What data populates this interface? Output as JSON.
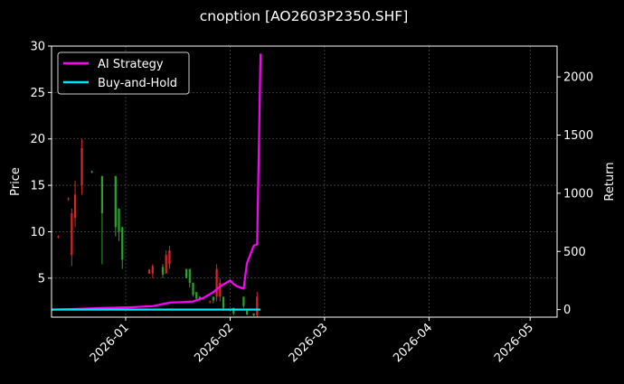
{
  "chart_data": {
    "type": "line",
    "title": "cnoption [AO2603P2350.SHF]",
    "ylabel": "Price",
    "y2label": "Return",
    "ylim": [
      0.8,
      30
    ],
    "y2lim": [
      -65,
      2265
    ],
    "xlim": [
      "2025-12-10",
      "2026-05-09"
    ],
    "yticks": [
      5,
      10,
      15,
      20,
      25,
      30
    ],
    "y2ticks": [
      0,
      500,
      1000,
      1500,
      2000
    ],
    "xticks": [
      "2026-01",
      "2026-02",
      "2026-03",
      "2026-04",
      "2026-05"
    ],
    "grid": true,
    "legend": "top-left",
    "colors": {
      "background": "#000000",
      "up": "#d62728",
      "down": "#2ca02c",
      "ai": "#ff00ff",
      "bh": "#00e5ff"
    },
    "candles": [
      {
        "date": "2025-12-12",
        "open": 9.4,
        "high": 9.6,
        "low": 9.3,
        "close": 9.5
      },
      {
        "date": "2025-12-15",
        "open": 13.5,
        "high": 13.7,
        "low": 13.3,
        "close": 13.6
      },
      {
        "date": "2025-12-16",
        "open": 7.5,
        "high": 12.5,
        "low": 6.3,
        "close": 12.0
      },
      {
        "date": "2025-12-17",
        "open": 11.5,
        "high": 15.5,
        "low": 10.5,
        "close": 14.0
      },
      {
        "date": "2025-12-19",
        "open": 15.0,
        "high": 20.0,
        "low": 14.0,
        "close": 19.0
      },
      {
        "date": "2025-12-22",
        "open": 16.5,
        "high": 16.6,
        "low": 16.3,
        "close": 16.4
      },
      {
        "date": "2025-12-25",
        "open": 16.0,
        "high": 16.0,
        "low": 6.5,
        "close": 12.0
      },
      {
        "date": "2025-12-29",
        "open": 16.0,
        "high": 16.0,
        "low": 9.5,
        "close": 10.5
      },
      {
        "date": "2025-12-30",
        "open": 12.5,
        "high": 12.5,
        "low": 9.0,
        "close": 10.0
      },
      {
        "date": "2025-12-31",
        "open": 10.5,
        "high": 10.5,
        "low": 6.0,
        "close": 7.0
      },
      {
        "date": "2026-01-08",
        "open": 5.5,
        "high": 6.0,
        "low": 5.5,
        "close": 5.9
      },
      {
        "date": "2026-01-09",
        "open": 5.5,
        "high": 6.5,
        "low": 5.0,
        "close": 6.3
      },
      {
        "date": "2026-01-12",
        "open": 6.2,
        "high": 6.5,
        "low": 5.0,
        "close": 5.4
      },
      {
        "date": "2026-01-13",
        "open": 5.5,
        "high": 8.0,
        "low": 5.5,
        "close": 7.5
      },
      {
        "date": "2026-01-14",
        "open": 6.5,
        "high": 8.5,
        "low": 6.0,
        "close": 8.0
      },
      {
        "date": "2026-01-19",
        "open": 6.0,
        "high": 6.0,
        "low": 5.0,
        "close": 5.0
      },
      {
        "date": "2026-01-20",
        "open": 6.0,
        "high": 6.0,
        "low": 4.0,
        "close": 4.5
      },
      {
        "date": "2026-01-21",
        "open": 4.5,
        "high": 4.5,
        "low": 3.0,
        "close": 3.2
      },
      {
        "date": "2026-01-22",
        "open": 3.5,
        "high": 3.5,
        "low": 2.5,
        "close": 2.8
      },
      {
        "date": "2026-01-23",
        "open": 3.0,
        "high": 3.0,
        "low": 2.5,
        "close": 2.7
      },
      {
        "date": "2026-01-26",
        "open": 2.5,
        "high": 2.6,
        "low": 2.3,
        "close": 2.5
      },
      {
        "date": "2026-01-27",
        "open": 3.0,
        "high": 3.0,
        "low": 2.3,
        "close": 2.6
      },
      {
        "date": "2026-01-28",
        "open": 3.0,
        "high": 6.5,
        "low": 2.5,
        "close": 6.0
      },
      {
        "date": "2026-01-29",
        "open": 3.0,
        "high": 5.0,
        "low": 2.5,
        "close": 4.5
      },
      {
        "date": "2026-01-30",
        "open": 3.0,
        "high": 3.0,
        "low": 1.5,
        "close": 1.8
      },
      {
        "date": "2026-02-02",
        "open": 1.8,
        "high": 1.8,
        "low": 1.0,
        "close": 1.2
      },
      {
        "date": "2026-02-05",
        "open": 3.0,
        "high": 3.0,
        "low": 1.8,
        "close": 2.0
      },
      {
        "date": "2026-02-06",
        "open": 1.5,
        "high": 1.5,
        "low": 1.0,
        "close": 1.1
      },
      {
        "date": "2026-02-08",
        "open": 1.2,
        "high": 1.2,
        "low": 0.9,
        "close": 1.0
      },
      {
        "date": "2026-02-09",
        "open": 1.0,
        "high": 3.5,
        "low": 0.8,
        "close": 3.0
      }
    ],
    "series": [
      {
        "name": "AI Strategy",
        "x": [
          "2025-12-10",
          "2025-12-17",
          "2025-12-26",
          "2026-01-02",
          "2026-01-09",
          "2026-01-14",
          "2026-01-18",
          "2026-01-21",
          "2026-01-24",
          "2026-01-27",
          "2026-01-29",
          "2026-02-01",
          "2026-02-02",
          "2026-02-03",
          "2026-02-05",
          "2026-02-06",
          "2026-02-08",
          "2026-02-09",
          "2026-02-10"
        ],
        "values": [
          0,
          5,
          15,
          20,
          30,
          60,
          65,
          70,
          100,
          150,
          200,
          250,
          220,
          200,
          180,
          400,
          550,
          560,
          2200
        ]
      },
      {
        "name": "Buy-and-Hold",
        "x": [
          "2025-12-10",
          "2026-02-10"
        ],
        "values": [
          0,
          0
        ]
      }
    ]
  }
}
